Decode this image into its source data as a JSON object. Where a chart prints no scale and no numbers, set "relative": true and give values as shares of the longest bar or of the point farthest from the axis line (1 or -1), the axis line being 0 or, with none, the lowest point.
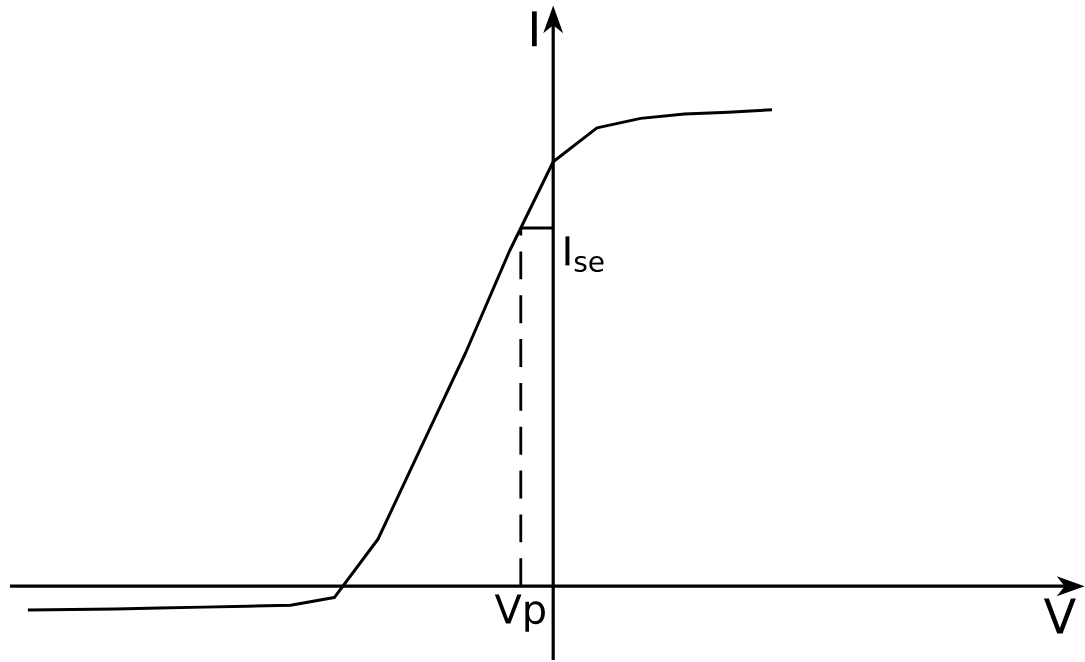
{
  "chart_data": {
    "type": "line",
    "relative": true,
    "ylabel": "I",
    "categories": [
      null,
      null,
      null,
      null,
      null,
      null,
      null,
      null,
      null,
      null,
      null,
      null,
      null,
      null,
      null,
      null,
      null,
      null
    ],
    "values": [
      -0.05,
      -0.049,
      -0.048,
      -0.046,
      -0.044,
      -0.042,
      -0.04,
      -0.024,
      0.099,
      0.295,
      0.49,
      0.703,
      0.891,
      0.962,
      0.982,
      0.991,
      0.995,
      1.0
    ],
    "color": "#000000",
    "marker": "none",
    "line_style": "solid",
    "annotations": [
      "Vp",
      "I$_{se}$",
      "V"
    ]
  }
}
